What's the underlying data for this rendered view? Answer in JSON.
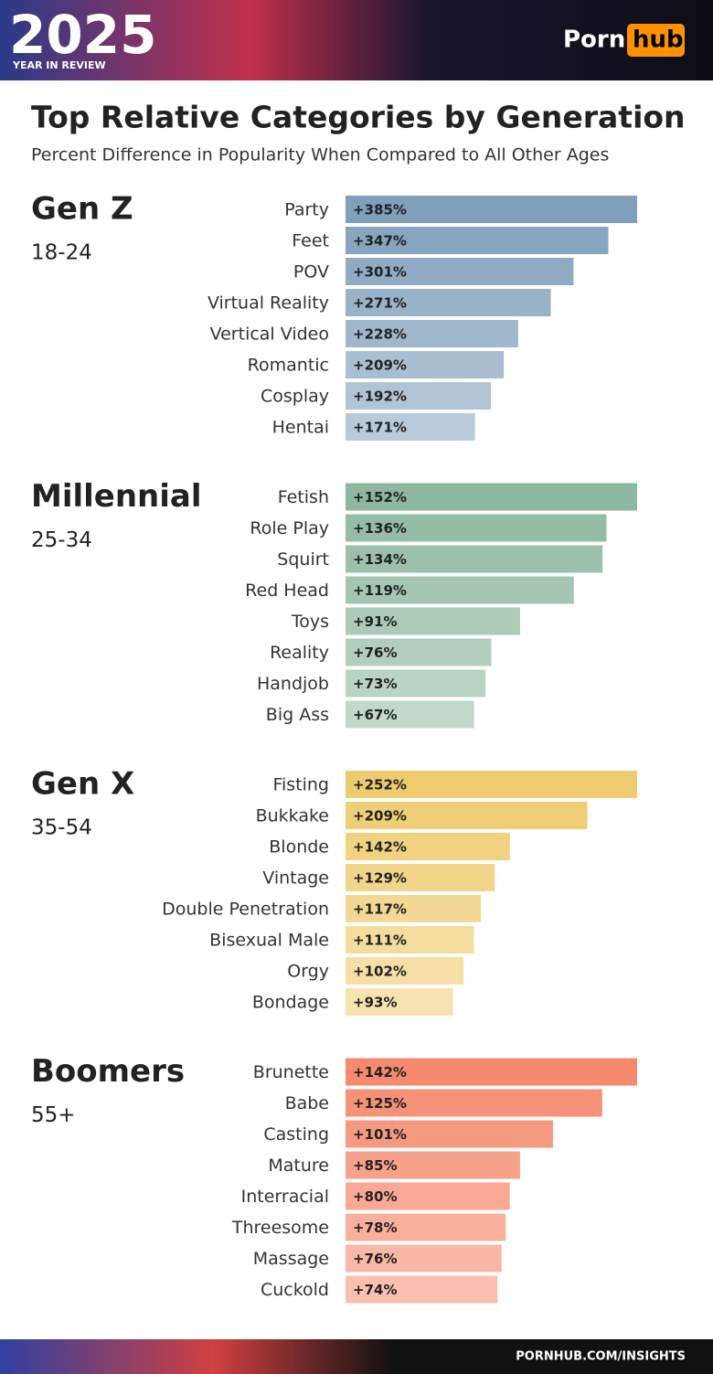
{
  "header": {
    "year": "2025",
    "tagline": "YEAR IN REVIEW",
    "logo_left": "Porn",
    "logo_right": "hub"
  },
  "title": "Top Relative Categories by Generation",
  "subtitle": "Percent Difference in Popularity When Compared to All Other Ages",
  "footer": "PORNHUB.COM/INSIGHTS",
  "chart_data": [
    {
      "type": "bar",
      "title": "Gen Z",
      "subtitle": "18-24",
      "color": "#7f9fba",
      "categories": [
        "Party",
        "Feet",
        "POV",
        "Virtual Reality",
        "Vertical Video",
        "Romantic",
        "Cosplay",
        "Hentai"
      ],
      "values": [
        385,
        347,
        301,
        271,
        228,
        209,
        192,
        171
      ],
      "value_labels": [
        "+385%",
        "+347%",
        "+301%",
        "+271%",
        "+228%",
        "+209%",
        "+192%",
        "+171%"
      ]
    },
    {
      "type": "bar",
      "title": "Millennial",
      "subtitle": "25-34",
      "color": "#8db79f",
      "categories": [
        "Fetish",
        "Role Play",
        "Squirt",
        "Red Head",
        "Toys",
        "Reality",
        "Handjob",
        "Big Ass"
      ],
      "values": [
        152,
        136,
        134,
        119,
        91,
        76,
        73,
        67
      ],
      "value_labels": [
        "+152%",
        "+136%",
        "+134%",
        "+119%",
        "+91%",
        "+76%",
        "+73%",
        "+67%"
      ]
    },
    {
      "type": "bar",
      "title": "Gen X",
      "subtitle": "35-54",
      "color": "#eecb6e",
      "categories": [
        "Fisting",
        "Bukkake",
        "Blonde",
        "Vintage",
        "Double Penetration",
        "Bisexual Male",
        "Orgy",
        "Bondage"
      ],
      "values": [
        252,
        209,
        142,
        129,
        117,
        111,
        102,
        93
      ],
      "value_labels": [
        "+252%",
        "+209%",
        "+142%",
        "+129%",
        "+117%",
        "+111%",
        "+102%",
        "+93%"
      ]
    },
    {
      "type": "bar",
      "title": "Boomers",
      "subtitle": "55+",
      "color": "#f58a6e",
      "categories": [
        "Brunette",
        "Babe",
        "Casting",
        "Mature",
        "Interracial",
        "Threesome",
        "Massage",
        "Cuckold"
      ],
      "values": [
        142,
        125,
        101,
        85,
        80,
        78,
        76,
        74
      ],
      "value_labels": [
        "+142%",
        "+125%",
        "+101%",
        "+85%",
        "+80%",
        "+78%",
        "+76%",
        "+74%"
      ]
    }
  ]
}
